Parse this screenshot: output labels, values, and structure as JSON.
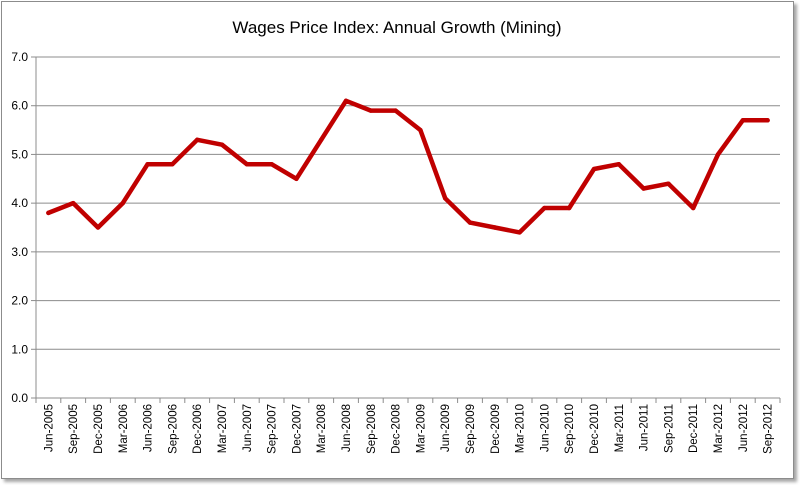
{
  "chart_data": {
    "type": "line",
    "title": "Wages Price Index: Annual Growth (Mining)",
    "xlabel": "",
    "ylabel": "",
    "ylim": [
      0,
      7
    ],
    "yticks": [
      "0.0",
      "1.0",
      "2.0",
      "3.0",
      "4.0",
      "5.0",
      "6.0",
      "7.0"
    ],
    "grid": true,
    "legend": "none",
    "categories": [
      "Jun-2005",
      "Sep-2005",
      "Dec-2005",
      "Mar-2006",
      "Jun-2006",
      "Sep-2006",
      "Dec-2006",
      "Mar-2007",
      "Jun-2007",
      "Sep-2007",
      "Dec-2007",
      "Mar-2008",
      "Jun-2008",
      "Sep-2008",
      "Dec-2008",
      "Mar-2009",
      "Jun-2009",
      "Sep-2009",
      "Dec-2009",
      "Mar-2010",
      "Jun-2010",
      "Sep-2010",
      "Dec-2010",
      "Mar-2011",
      "Jun-2011",
      "Sep-2011",
      "Dec-2011",
      "Mar-2012",
      "Jun-2012",
      "Sep-2012"
    ],
    "series": [
      {
        "color": "#c00000",
        "values": [
          3.8,
          4.0,
          3.5,
          4.0,
          4.8,
          4.8,
          5.3,
          5.2,
          4.8,
          4.8,
          4.5,
          5.3,
          6.1,
          5.9,
          5.9,
          5.5,
          4.1,
          3.6,
          3.5,
          3.4,
          3.9,
          3.9,
          4.7,
          4.8,
          4.3,
          4.4,
          3.9,
          5.0,
          5.7,
          5.7
        ]
      }
    ]
  }
}
